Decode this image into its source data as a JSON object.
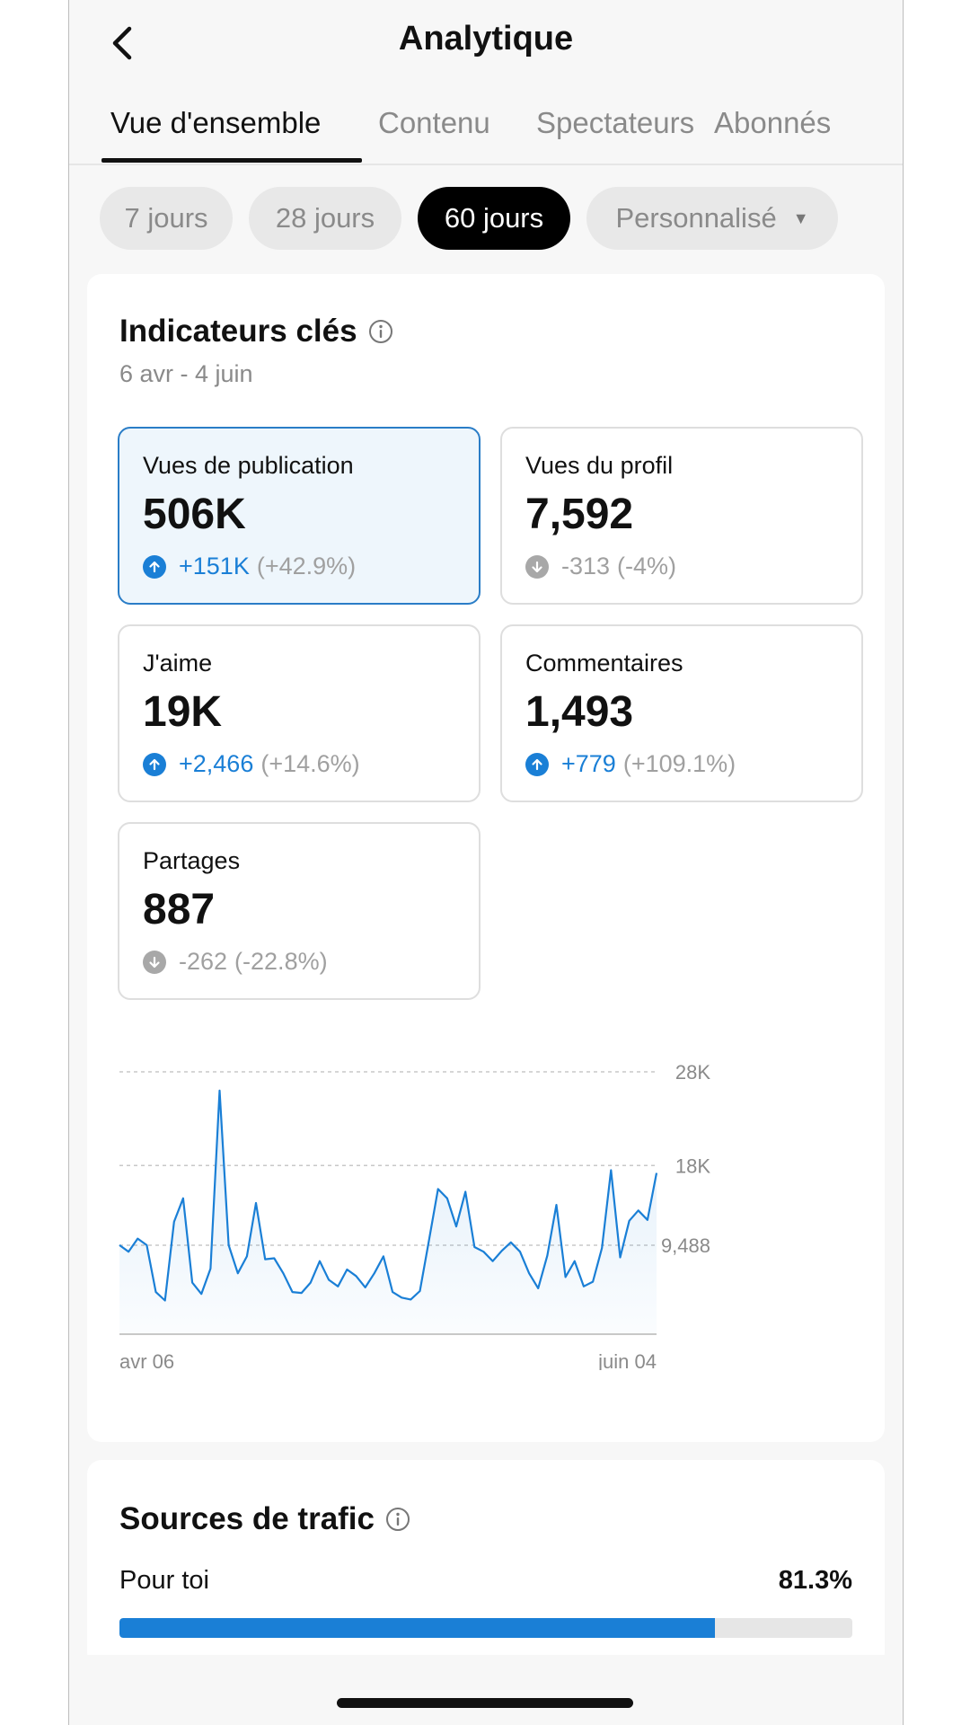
{
  "header": {
    "title": "Analytique",
    "back_icon": "chevron-left-icon"
  },
  "tabs": [
    {
      "label": "Vue d'ensemble",
      "active": true
    },
    {
      "label": "Contenu",
      "active": false
    },
    {
      "label": "Spectateurs",
      "active": false
    },
    {
      "label": "Abonnés",
      "active": false
    }
  ],
  "periods": [
    {
      "label": "7 jours",
      "active": false
    },
    {
      "label": "28 jours",
      "active": false
    },
    {
      "label": "60 jours",
      "active": true
    },
    {
      "label": "Personnalisé",
      "active": false,
      "icon": "caret-down-icon"
    }
  ],
  "key_metrics": {
    "title": "Indicateurs clés",
    "date_range": "6 avr - 4 juin",
    "cards": [
      {
        "label": "Vues de publication",
        "value": "506K",
        "delta": "+151K",
        "pct": "(+42.9%)",
        "direction": "up",
        "selected": true
      },
      {
        "label": "Vues du profil",
        "value": "7,592",
        "delta": "-313",
        "pct": "(-4%)",
        "direction": "down",
        "selected": false
      },
      {
        "label": "J'aime",
        "value": "19K",
        "delta": "+2,466",
        "pct": "(+14.6%)",
        "direction": "up",
        "selected": false
      },
      {
        "label": "Commentaires",
        "value": "1,493",
        "delta": "+779",
        "pct": "(+109.1%)",
        "direction": "up",
        "selected": false
      },
      {
        "label": "Partages",
        "value": "887",
        "delta": "-262",
        "pct": "(-22.8%)",
        "direction": "down",
        "selected": false
      }
    ]
  },
  "chart_data": {
    "type": "area",
    "x_start_label": "avr 06",
    "x_end_label": "juin 04",
    "y_ticks": [
      {
        "value": 28000,
        "label": "28K"
      },
      {
        "value": 18000,
        "label": "18K"
      },
      {
        "value": 9488,
        "label": "9,488"
      }
    ],
    "ylim": [
      0,
      28000
    ],
    "grid": true,
    "color": "#1a7fd6",
    "series": [
      {
        "values": [
          9500,
          8800,
          10200,
          9500,
          4500,
          3600,
          12000,
          14500,
          5500,
          4300,
          7000,
          26000,
          9500,
          6500,
          8300,
          14000,
          8000,
          8100,
          6500,
          4500,
          4400,
          5500,
          7800,
          5800,
          5100,
          6900,
          6200,
          5000,
          6500,
          8300,
          4500,
          3900,
          3700,
          4600,
          10000,
          15500,
          14500,
          11500,
          15200,
          9300,
          8800,
          7800,
          8900,
          9800,
          8800,
          6500,
          4900,
          8400,
          13800,
          6100,
          7800,
          5100,
          5600,
          9200,
          17500,
          8200,
          12100,
          13200,
          12200,
          17200
        ]
      }
    ]
  },
  "traffic": {
    "title": "Sources de trafic",
    "rows": [
      {
        "label": "Pour toi",
        "value": "81.3%",
        "fraction": 0.813
      }
    ]
  }
}
